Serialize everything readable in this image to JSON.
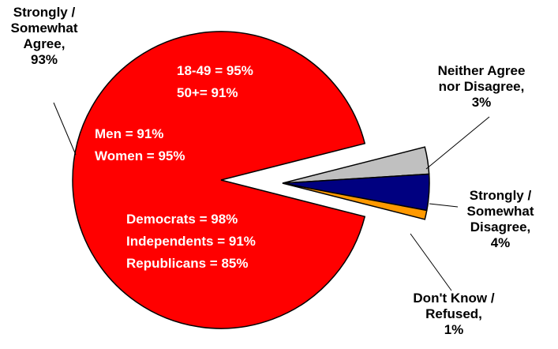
{
  "chart_data": {
    "type": "pie",
    "exploded": true,
    "slices": [
      {
        "label": [
          "Strongly /",
          "Somewhat",
          "Agree,",
          "93%"
        ],
        "value": 93,
        "color": "#FF0000"
      },
      {
        "label": [
          "Neither Agree",
          "nor Disagree,",
          "3%"
        ],
        "value": 3,
        "color": "#C0C0C0"
      },
      {
        "label": [
          "Strongly /",
          "Somewhat",
          "Disagree,",
          "4%"
        ],
        "value": 4,
        "color": "#000080"
      },
      {
        "label": [
          "Don't Know /",
          "Refused,",
          "1%"
        ],
        "value": 1,
        "color": "#FF9900"
      }
    ],
    "annotations": [
      {
        "lines": [
          "18-49 =  95%",
          "50+= 91%"
        ]
      },
      {
        "lines": [
          "Men =  91%",
          "Women = 95%"
        ]
      },
      {
        "lines": [
          "Democrats = 98%",
          "Independents = 91%",
          "Republicans = 85%"
        ]
      }
    ]
  }
}
